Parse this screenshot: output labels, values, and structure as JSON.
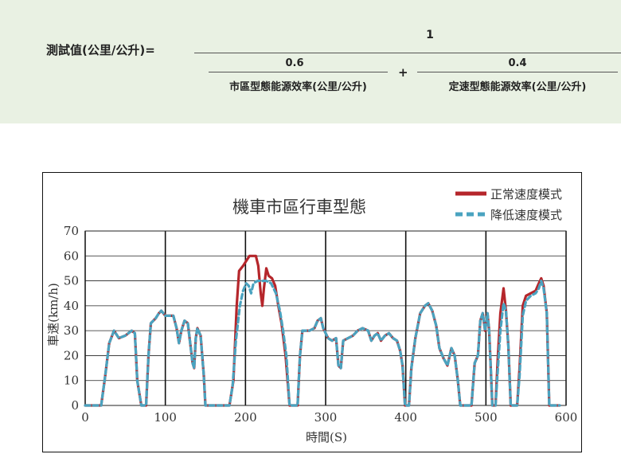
{
  "formula": {
    "lhs": "測試值(公里/公升)=",
    "numerator": "1",
    "term1_numerator": "0.6",
    "term1_denominator": "市區型態能源效率(公里/公升)",
    "plus": "+",
    "term2_numerator": "0.4",
    "term2_denominator": "定速型態能源效率(公里/公升)"
  },
  "colors": {
    "panel_bg": "#e9f1e3",
    "normal_series": "#b5262b",
    "reduced_series": "#4aa3c0"
  },
  "chart_data": {
    "type": "line",
    "title": "機車市區行車型態",
    "xlabel": "時間(S)",
    "ylabel": "車速(km/h)",
    "xlim": [
      0,
      600
    ],
    "ylim": [
      0,
      70
    ],
    "xticks": [
      0,
      100,
      200,
      300,
      400,
      500,
      600
    ],
    "yticks": [
      0,
      10,
      20,
      30,
      40,
      50,
      60,
      70
    ],
    "grid": "both",
    "legend_position": "top-right",
    "series": [
      {
        "name": "正常速度模式",
        "points": [
          [
            0,
            0
          ],
          [
            20,
            0
          ],
          [
            25,
            12
          ],
          [
            30,
            25
          ],
          [
            36,
            30
          ],
          [
            42,
            27
          ],
          [
            50,
            28
          ],
          [
            58,
            30
          ],
          [
            62,
            29
          ],
          [
            65,
            10
          ],
          [
            70,
            0
          ],
          [
            76,
            0
          ],
          [
            79,
            20
          ],
          [
            82,
            33
          ],
          [
            88,
            35
          ],
          [
            92,
            37
          ],
          [
            95,
            38
          ],
          [
            100,
            36
          ],
          [
            105,
            36
          ],
          [
            110,
            36
          ],
          [
            114,
            31
          ],
          [
            117,
            25
          ],
          [
            120,
            30
          ],
          [
            124,
            34
          ],
          [
            128,
            33
          ],
          [
            131,
            25
          ],
          [
            134,
            17
          ],
          [
            136,
            15
          ],
          [
            138,
            27
          ],
          [
            140,
            31
          ],
          [
            144,
            28
          ],
          [
            148,
            12
          ],
          [
            150,
            0
          ],
          [
            180,
            0
          ],
          [
            185,
            10
          ],
          [
            189,
            40
          ],
          [
            192,
            54
          ],
          [
            197,
            56
          ],
          [
            201,
            58
          ],
          [
            205,
            60
          ],
          [
            209,
            60
          ],
          [
            213,
            60
          ],
          [
            216,
            56
          ],
          [
            219,
            45
          ],
          [
            221,
            40
          ],
          [
            223,
            47
          ],
          [
            226,
            55
          ],
          [
            229,
            52
          ],
          [
            233,
            51
          ],
          [
            237,
            48
          ],
          [
            241,
            40
          ],
          [
            245,
            33
          ],
          [
            250,
            20
          ],
          [
            255,
            0
          ],
          [
            265,
            0
          ],
          [
            268,
            20
          ],
          [
            271,
            30
          ],
          [
            280,
            30
          ],
          [
            286,
            31
          ],
          [
            290,
            34
          ],
          [
            294,
            35
          ],
          [
            297,
            31
          ],
          [
            303,
            27
          ],
          [
            308,
            26
          ],
          [
            313,
            27
          ],
          [
            316,
            16
          ],
          [
            319,
            15
          ],
          [
            322,
            26
          ],
          [
            328,
            27
          ],
          [
            334,
            28
          ],
          [
            340,
            30
          ],
          [
            346,
            31
          ],
          [
            353,
            30
          ],
          [
            357,
            26
          ],
          [
            361,
            28
          ],
          [
            365,
            29
          ],
          [
            369,
            26
          ],
          [
            374,
            28
          ],
          [
            379,
            29
          ],
          [
            384,
            27
          ],
          [
            389,
            26
          ],
          [
            393,
            22
          ],
          [
            396,
            16
          ],
          [
            399,
            0
          ],
          [
            404,
            0
          ],
          [
            407,
            15
          ],
          [
            412,
            27
          ],
          [
            418,
            37
          ],
          [
            424,
            40
          ],
          [
            428,
            41
          ],
          [
            433,
            38
          ],
          [
            438,
            32
          ],
          [
            442,
            23
          ],
          [
            447,
            19
          ],
          [
            452,
            16
          ],
          [
            457,
            23
          ],
          [
            461,
            20
          ],
          [
            465,
            10
          ],
          [
            468,
            0
          ],
          [
            482,
            0
          ],
          [
            486,
            17
          ],
          [
            490,
            20
          ],
          [
            493,
            34
          ],
          [
            496,
            37
          ],
          [
            499,
            30
          ],
          [
            502,
            37
          ],
          [
            504,
            30
          ],
          [
            508,
            0
          ],
          [
            512,
            0
          ],
          [
            515,
            20
          ],
          [
            518,
            37
          ],
          [
            522,
            47
          ],
          [
            525,
            38
          ],
          [
            528,
            24
          ],
          [
            531,
            0
          ],
          [
            539,
            0
          ],
          [
            542,
            15
          ],
          [
            546,
            40
          ],
          [
            550,
            44
          ],
          [
            556,
            45
          ],
          [
            562,
            46
          ],
          [
            566,
            49
          ],
          [
            569,
            51
          ],
          [
            572,
            48
          ],
          [
            576,
            37
          ],
          [
            579,
            0
          ],
          [
            592,
            0
          ]
        ]
      },
      {
        "name": "降低速度模式",
        "points": [
          [
            0,
            0
          ],
          [
            20,
            0
          ],
          [
            25,
            12
          ],
          [
            30,
            25
          ],
          [
            36,
            30
          ],
          [
            42,
            27
          ],
          [
            50,
            28
          ],
          [
            58,
            30
          ],
          [
            62,
            29
          ],
          [
            65,
            10
          ],
          [
            70,
            0
          ],
          [
            76,
            0
          ],
          [
            79,
            20
          ],
          [
            82,
            33
          ],
          [
            88,
            35
          ],
          [
            92,
            37
          ],
          [
            95,
            38
          ],
          [
            100,
            36
          ],
          [
            105,
            36
          ],
          [
            110,
            36
          ],
          [
            114,
            31
          ],
          [
            117,
            25
          ],
          [
            120,
            30
          ],
          [
            124,
            34
          ],
          [
            128,
            33
          ],
          [
            131,
            25
          ],
          [
            134,
            17
          ],
          [
            136,
            15
          ],
          [
            138,
            27
          ],
          [
            140,
            31
          ],
          [
            144,
            28
          ],
          [
            148,
            12
          ],
          [
            150,
            0
          ],
          [
            180,
            0
          ],
          [
            184,
            8
          ],
          [
            188,
            26
          ],
          [
            193,
            40
          ],
          [
            197,
            46
          ],
          [
            201,
            49
          ],
          [
            204,
            48
          ],
          [
            207,
            45
          ],
          [
            210,
            49
          ],
          [
            215,
            50
          ],
          [
            220,
            50
          ],
          [
            226,
            50
          ],
          [
            232,
            49
          ],
          [
            238,
            45
          ],
          [
            243,
            38
          ],
          [
            247,
            30
          ],
          [
            251,
            20
          ],
          [
            255,
            0
          ],
          [
            265,
            0
          ],
          [
            268,
            20
          ],
          [
            271,
            30
          ],
          [
            280,
            30
          ],
          [
            286,
            31
          ],
          [
            290,
            34
          ],
          [
            294,
            35
          ],
          [
            297,
            31
          ],
          [
            303,
            27
          ],
          [
            308,
            26
          ],
          [
            313,
            27
          ],
          [
            316,
            16
          ],
          [
            319,
            15
          ],
          [
            322,
            26
          ],
          [
            328,
            27
          ],
          [
            334,
            28
          ],
          [
            340,
            30
          ],
          [
            346,
            31
          ],
          [
            353,
            30
          ],
          [
            357,
            26
          ],
          [
            361,
            28
          ],
          [
            365,
            29
          ],
          [
            369,
            26
          ],
          [
            374,
            28
          ],
          [
            379,
            29
          ],
          [
            384,
            27
          ],
          [
            389,
            26
          ],
          [
            393,
            22
          ],
          [
            396,
            16
          ],
          [
            399,
            0
          ],
          [
            404,
            0
          ],
          [
            407,
            15
          ],
          [
            412,
            27
          ],
          [
            418,
            37
          ],
          [
            424,
            40
          ],
          [
            428,
            41
          ],
          [
            433,
            38
          ],
          [
            438,
            32
          ],
          [
            442,
            23
          ],
          [
            447,
            19
          ],
          [
            452,
            16
          ],
          [
            457,
            23
          ],
          [
            461,
            20
          ],
          [
            465,
            10
          ],
          [
            468,
            0
          ],
          [
            482,
            0
          ],
          [
            486,
            17
          ],
          [
            490,
            20
          ],
          [
            493,
            34
          ],
          [
            496,
            37
          ],
          [
            499,
            30
          ],
          [
            502,
            37
          ],
          [
            504,
            30
          ],
          [
            508,
            0
          ],
          [
            512,
            0
          ],
          [
            515,
            15
          ],
          [
            518,
            30
          ],
          [
            522,
            41
          ],
          [
            525,
            38
          ],
          [
            528,
            24
          ],
          [
            531,
            0
          ],
          [
            539,
            0
          ],
          [
            542,
            12
          ],
          [
            546,
            36
          ],
          [
            550,
            42
          ],
          [
            556,
            44
          ],
          [
            562,
            45
          ],
          [
            566,
            47
          ],
          [
            569,
            50
          ],
          [
            572,
            47
          ],
          [
            576,
            37
          ],
          [
            579,
            0
          ],
          [
            592,
            0
          ]
        ]
      }
    ]
  }
}
